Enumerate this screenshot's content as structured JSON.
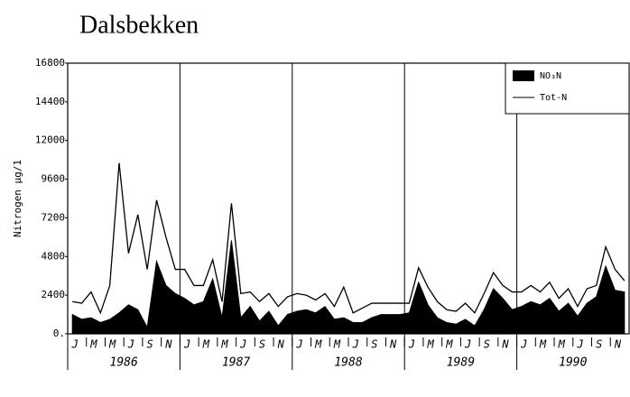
{
  "chart_data": {
    "type": "line",
    "title": "Dalsbekken",
    "y_label": "Nitrogen µg/1",
    "categories": [
      "J",
      null,
      "M",
      null,
      "M",
      null,
      "J",
      null,
      "S",
      null,
      "N",
      null,
      "J",
      null,
      "M",
      null,
      "M",
      null,
      "J",
      null,
      "S",
      null,
      "N",
      null,
      "J",
      null,
      "M",
      null,
      "M",
      null,
      "J",
      null,
      "S",
      null,
      "N",
      null,
      "J",
      null,
      "M",
      null,
      "M",
      null,
      "J",
      null,
      "S",
      null,
      "N",
      null,
      "J",
      null,
      "M",
      null,
      "M",
      null,
      "J",
      null,
      "S",
      null,
      "N",
      null
    ],
    "years": [
      "1986",
      "1987",
      "1988",
      "1989",
      "1990"
    ],
    "series": [
      {
        "name": "NO₃N",
        "type": "area",
        "color": "#000000",
        "values": [
          1200,
          900,
          1000,
          700,
          900,
          1300,
          1800,
          1500,
          400,
          4500,
          3000,
          2500,
          2200,
          1800,
          2000,
          3400,
          1000,
          5800,
          1000,
          1700,
          800,
          1400,
          500,
          1200,
          1400,
          1500,
          1300,
          1700,
          900,
          1000,
          700,
          700,
          1000,
          1200,
          1200,
          1200,
          1300,
          3200,
          1800,
          1000,
          700,
          600,
          900,
          500,
          1500,
          2800,
          2200,
          1500,
          1700,
          2000,
          1800,
          2200,
          1400,
          1900,
          1100,
          1900,
          2300,
          4200,
          2700,
          2600
        ]
      },
      {
        "name": "Tot-N",
        "type": "line",
        "color": "#000000",
        "values": [
          2000,
          1900,
          2600,
          1300,
          3000,
          10600,
          5000,
          7400,
          4000,
          8300,
          6000,
          4000,
          4000,
          3000,
          3000,
          4600,
          2000,
          8100,
          2500,
          2600,
          2000,
          2500,
          1700,
          2300,
          2500,
          2400,
          2100,
          2500,
          1700,
          2900,
          1300,
          1600,
          1900,
          1900,
          1900,
          1900,
          1900,
          4100,
          2900,
          2000,
          1500,
          1400,
          1900,
          1300,
          2500,
          3800,
          3000,
          2600,
          2600,
          3000,
          2600,
          3200,
          2200,
          2800,
          1700,
          2800,
          3000,
          5400,
          4000,
          3300
        ]
      }
    ],
    "ylim": [
      0,
      16800
    ],
    "yticks": [
      {
        "value": 0,
        "label": "0."
      },
      2400,
      4800,
      7200,
      9600,
      12000,
      14400,
      16800
    ],
    "legend": "top-right"
  }
}
